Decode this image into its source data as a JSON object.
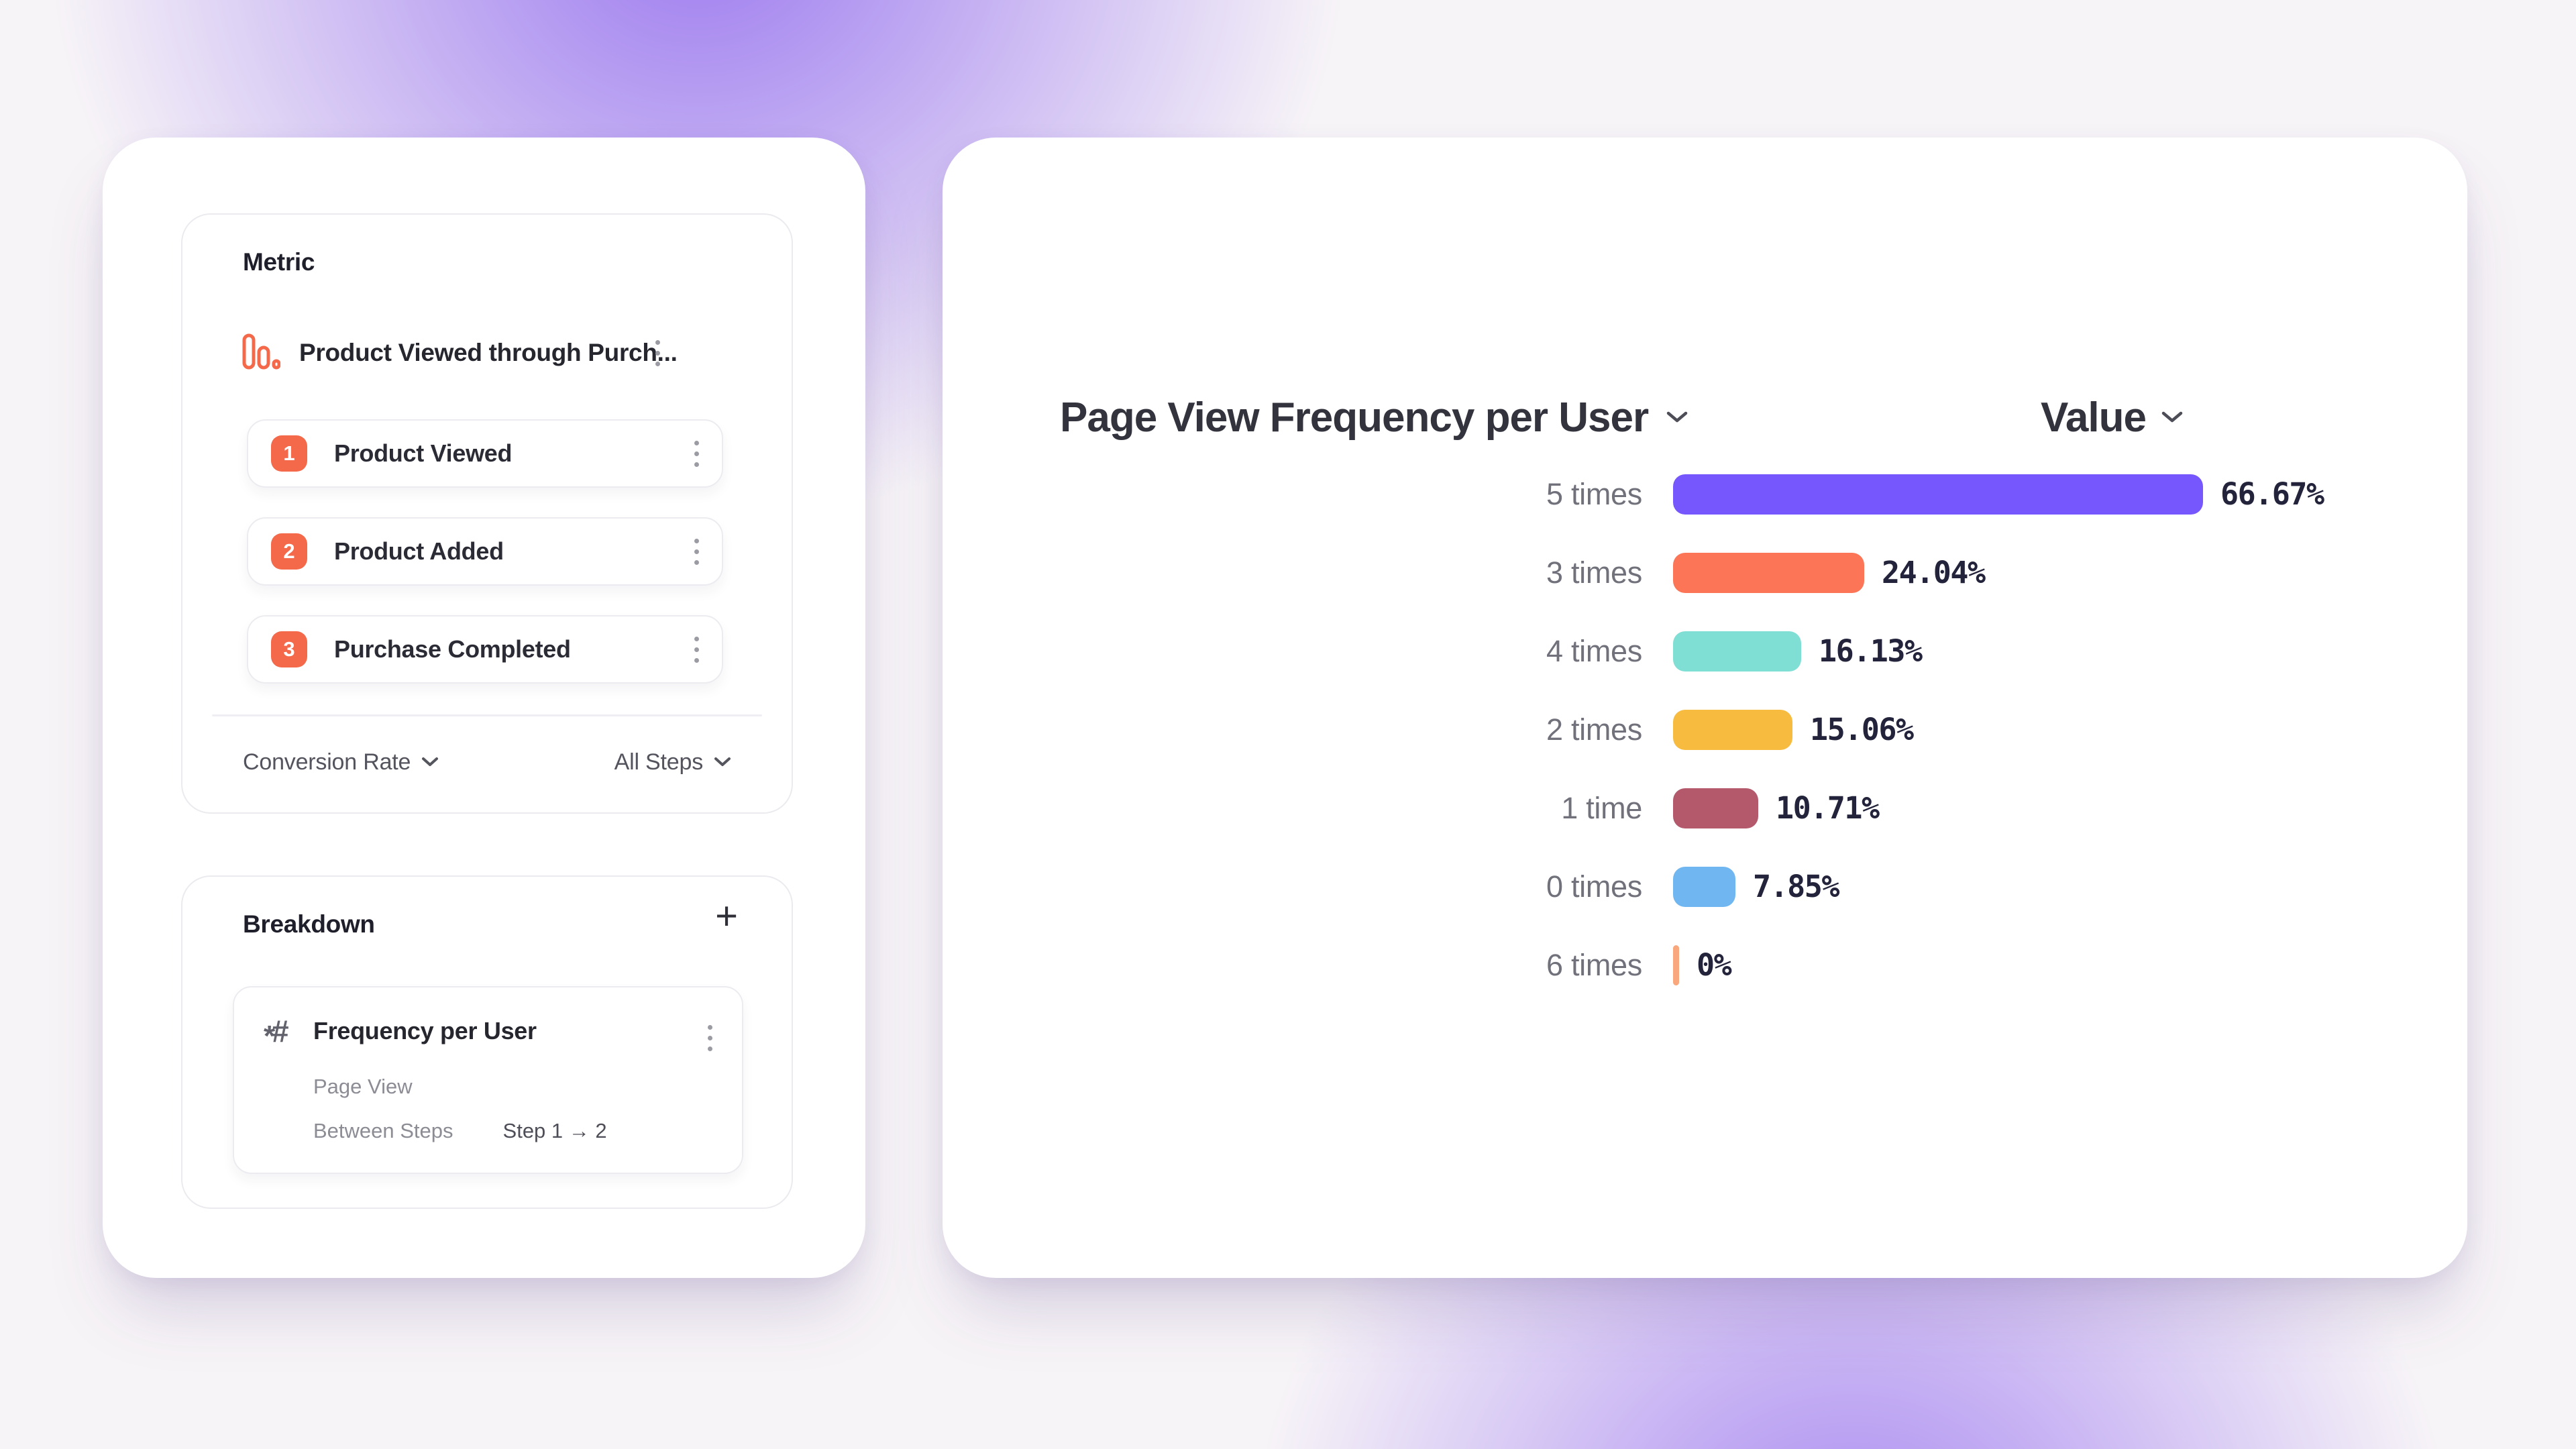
{
  "metric_panel": {
    "title": "Metric",
    "funnel": {
      "name": "Product Viewed through Purch...",
      "steps": [
        {
          "index": "1",
          "label": "Product Viewed"
        },
        {
          "index": "2",
          "label": "Product Added"
        },
        {
          "index": "3",
          "label": "Purchase Completed"
        }
      ],
      "measurement_dropdown": "Conversion Rate",
      "steps_dropdown": "All Steps"
    }
  },
  "breakdown_panel": {
    "title": "Breakdown",
    "add_label": "+",
    "item": {
      "title": "Frequency per User",
      "event": "Page View",
      "between_steps_label": "Between Steps",
      "between_steps_value": "Step 1 → 2"
    }
  },
  "chart": {
    "title": "Page View Frequency per User",
    "value_header": "Value",
    "chart_data": {
      "type": "bar",
      "orientation": "horizontal",
      "value_format": "percent",
      "xlim": [
        0,
        70
      ],
      "grid": false,
      "categories": [
        "5 times",
        "3 times",
        "4 times",
        "2 times",
        "1 time",
        "0 times",
        "6 times"
      ],
      "values": [
        66.67,
        24.04,
        16.13,
        15.06,
        10.71,
        7.85,
        0
      ],
      "rows": [
        {
          "label": "5 times",
          "value": 66.67,
          "display": "66.67%",
          "color": "#7657FD"
        },
        {
          "label": "3 times",
          "value": 24.04,
          "display": "24.04%",
          "color": "#FD7557"
        },
        {
          "label": "4 times",
          "value": 16.13,
          "display": "16.13%",
          "color": "#7FDFD4"
        },
        {
          "label": "2 times",
          "value": 15.06,
          "display": "15.06%",
          "color": "#F7BC3F"
        },
        {
          "label": "1 time",
          "value": 10.71,
          "display": "10.71%",
          "color": "#B4596C"
        },
        {
          "label": "0 times",
          "value": 7.85,
          "display": "7.85%",
          "color": "#70B7F1"
        },
        {
          "label": "6 times",
          "value": 0,
          "display": "0%",
          "color": "#F9A87E"
        }
      ]
    }
  },
  "colors": {
    "accent_orange": "#F5694B",
    "background_purple": "#9B76F0",
    "text_dark": "#26262F",
    "text_gray": "#71717C"
  }
}
